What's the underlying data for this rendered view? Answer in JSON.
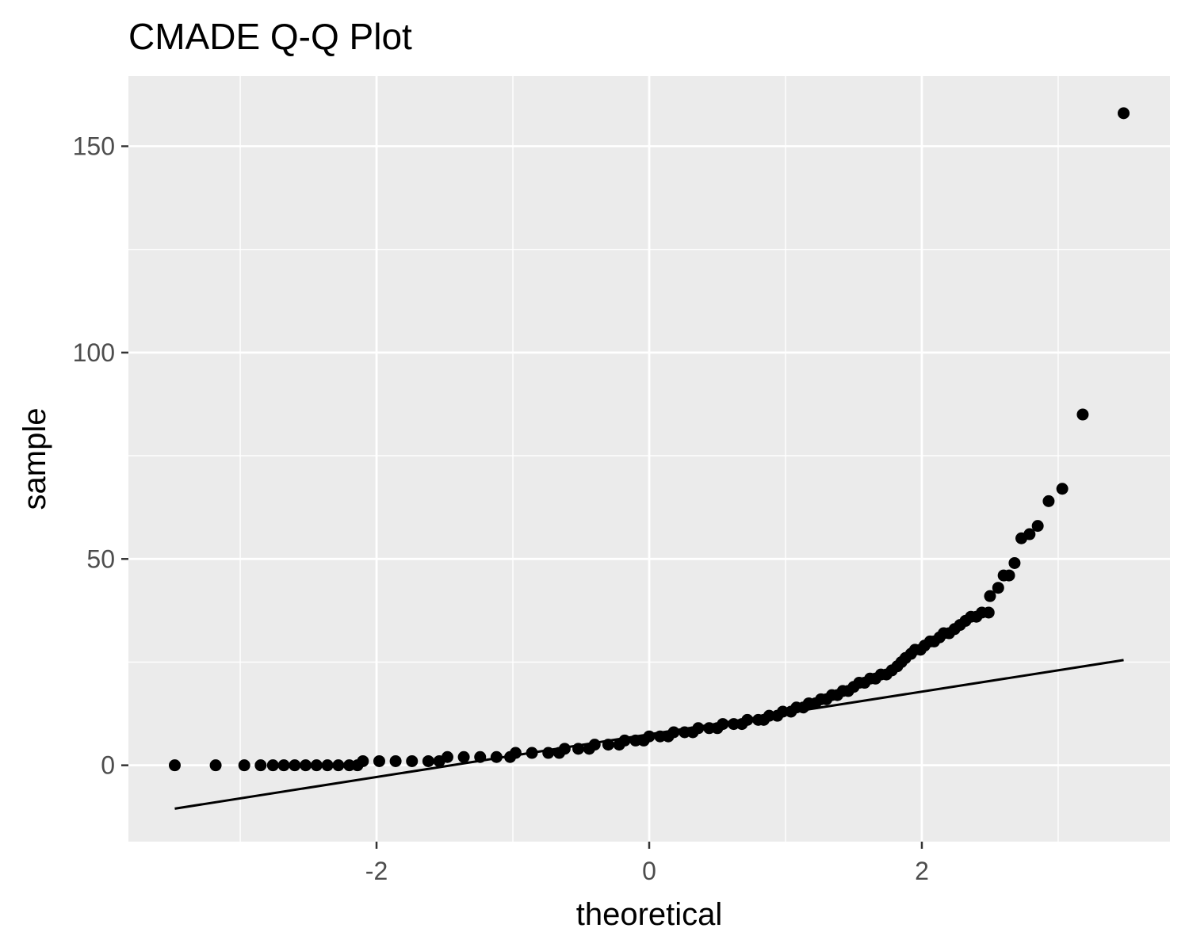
{
  "chart_data": {
    "type": "scatter",
    "subtype": "qq-plot",
    "title": "CMADE Q-Q Plot",
    "xlabel": "theoretical",
    "ylabel": "sample",
    "xlim": [
      -3.82,
      3.82
    ],
    "ylim": [
      -18.5,
      167
    ],
    "x_ticks": [
      -2,
      0,
      2
    ],
    "x_tick_labels": [
      "-2",
      "0",
      "2"
    ],
    "y_ticks": [
      0,
      50,
      100,
      150
    ],
    "y_tick_labels": [
      "0",
      "50",
      "100",
      "150"
    ],
    "grid": true,
    "legend": "none",
    "colors": {
      "panel": "#ebebeb",
      "grid": "#ffffff",
      "points": "#000000",
      "line": "#000000",
      "tick_text": "#4d4d4d",
      "tick_mark": "#333333"
    },
    "series": [
      {
        "kind": "points",
        "points": [
          [
            -3.48,
            0
          ],
          [
            -3.18,
            0
          ],
          [
            -2.97,
            0
          ],
          [
            -2.85,
            0
          ],
          [
            -2.76,
            0
          ],
          [
            -2.68,
            0
          ],
          [
            -2.6,
            0
          ],
          [
            -2.52,
            0
          ],
          [
            -2.44,
            0
          ],
          [
            -2.36,
            0
          ],
          [
            -2.28,
            0
          ],
          [
            -2.2,
            0
          ],
          [
            -2.14,
            0
          ],
          [
            -2.1,
            1
          ],
          [
            -1.98,
            1
          ],
          [
            -1.86,
            1
          ],
          [
            -1.74,
            1
          ],
          [
            -1.62,
            1
          ],
          [
            -1.54,
            1
          ],
          [
            -1.48,
            2
          ],
          [
            -1.36,
            2
          ],
          [
            -1.24,
            2
          ],
          [
            -1.12,
            2
          ],
          [
            -1.02,
            2
          ],
          [
            -0.98,
            3
          ],
          [
            -0.86,
            3
          ],
          [
            -0.74,
            3
          ],
          [
            -0.66,
            3
          ],
          [
            -0.62,
            4
          ],
          [
            -0.52,
            4
          ],
          [
            -0.44,
            4
          ],
          [
            -0.4,
            5
          ],
          [
            -0.3,
            5
          ],
          [
            -0.22,
            5
          ],
          [
            -0.18,
            6
          ],
          [
            -0.1,
            6
          ],
          [
            -0.04,
            6
          ],
          [
            0.0,
            7
          ],
          [
            0.08,
            7
          ],
          [
            0.14,
            7
          ],
          [
            0.18,
            8
          ],
          [
            0.26,
            8
          ],
          [
            0.32,
            8
          ],
          [
            0.36,
            9
          ],
          [
            0.44,
            9
          ],
          [
            0.5,
            9
          ],
          [
            0.54,
            10
          ],
          [
            0.62,
            10
          ],
          [
            0.68,
            10
          ],
          [
            0.72,
            11
          ],
          [
            0.8,
            11
          ],
          [
            0.84,
            11
          ],
          [
            0.88,
            12
          ],
          [
            0.94,
            12
          ],
          [
            0.98,
            13
          ],
          [
            1.04,
            13
          ],
          [
            1.08,
            14
          ],
          [
            1.13,
            14
          ],
          [
            1.17,
            15
          ],
          [
            1.22,
            15
          ],
          [
            1.26,
            16
          ],
          [
            1.3,
            16
          ],
          [
            1.34,
            17
          ],
          [
            1.38,
            17
          ],
          [
            1.42,
            18
          ],
          [
            1.46,
            18
          ],
          [
            1.5,
            19
          ],
          [
            1.54,
            20
          ],
          [
            1.58,
            20
          ],
          [
            1.62,
            21
          ],
          [
            1.66,
            21
          ],
          [
            1.7,
            22
          ],
          [
            1.74,
            22
          ],
          [
            1.78,
            23
          ],
          [
            1.82,
            24
          ],
          [
            1.85,
            25
          ],
          [
            1.88,
            26
          ],
          [
            1.92,
            27
          ],
          [
            1.95,
            28
          ],
          [
            1.99,
            28
          ],
          [
            2.02,
            29
          ],
          [
            2.06,
            30
          ],
          [
            2.09,
            30
          ],
          [
            2.13,
            31
          ],
          [
            2.16,
            32
          ],
          [
            2.2,
            32
          ],
          [
            2.24,
            33
          ],
          [
            2.28,
            34
          ],
          [
            2.32,
            35
          ],
          [
            2.36,
            36
          ],
          [
            2.4,
            36
          ],
          [
            2.44,
            37
          ],
          [
            2.49,
            37
          ],
          [
            2.5,
            41
          ],
          [
            2.56,
            43
          ],
          [
            2.6,
            46
          ],
          [
            2.64,
            46
          ],
          [
            2.68,
            49
          ],
          [
            2.73,
            55
          ],
          [
            2.79,
            56
          ],
          [
            2.85,
            58
          ],
          [
            2.93,
            64
          ],
          [
            3.03,
            67
          ],
          [
            3.18,
            85
          ],
          [
            3.48,
            158
          ]
        ]
      },
      {
        "kind": "reference-line",
        "from": [
          -3.48,
          -10.5
        ],
        "to": [
          3.48,
          25.5
        ]
      }
    ]
  }
}
